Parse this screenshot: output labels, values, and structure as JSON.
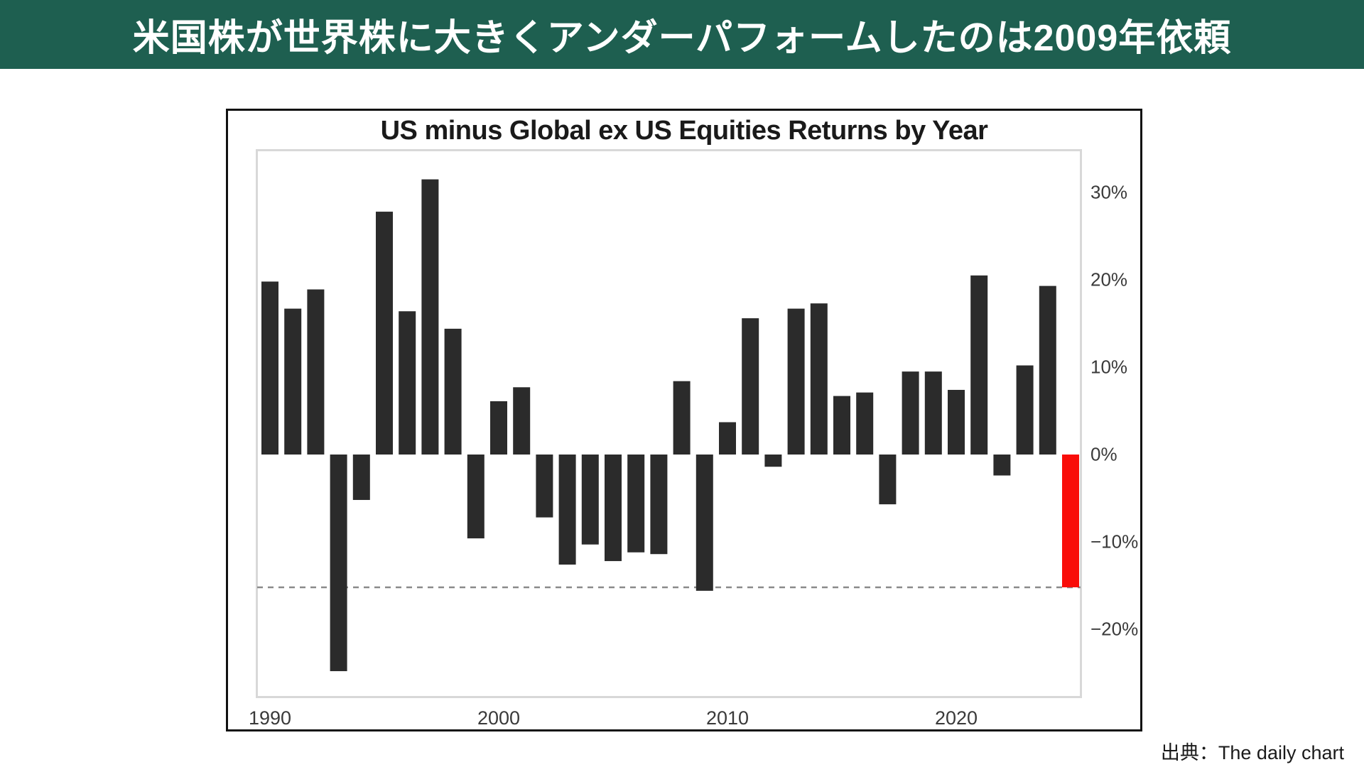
{
  "banner": {
    "title": "米国株が世界株に大きくアンダーパフォームしたのは2009年依頼"
  },
  "source_note": "出典：The daily chart",
  "colors": {
    "banner_bg": "#1e5f50",
    "banner_text": "#ffffff",
    "bar": "#2b2b2b",
    "highlight": "#f90d09",
    "dashed_line": "#8a8a8a",
    "plot_border": "#d8d8d8",
    "outer_border": "#111111",
    "tick_text": "#3a3a3a"
  },
  "chart_data": {
    "type": "bar",
    "title": "US minus Global ex US Equities Returns by Year",
    "xlabel": "",
    "ylabel": "",
    "categories": [
      1990,
      1991,
      1992,
      1993,
      1994,
      1995,
      1996,
      1997,
      1998,
      1999,
      2000,
      2001,
      2002,
      2003,
      2004,
      2005,
      2006,
      2007,
      2008,
      2009,
      2010,
      2011,
      2012,
      2013,
      2014,
      2015,
      2016,
      2017,
      2018,
      2019,
      2020,
      2021,
      2022,
      2023,
      2024,
      2025
    ],
    "values": [
      19.8,
      16.7,
      18.9,
      -24.8,
      -5.2,
      27.8,
      16.4,
      31.5,
      14.4,
      -9.6,
      6.1,
      7.7,
      -7.2,
      -12.6,
      -10.3,
      -12.2,
      -11.2,
      -11.4,
      8.4,
      -15.6,
      3.7,
      15.6,
      -1.4,
      16.7,
      17.3,
      6.7,
      7.1,
      -5.7,
      9.5,
      9.5,
      7.4,
      20.5,
      -2.4,
      10.2,
      19.3,
      -15.2
    ],
    "highlight_year": 2025,
    "dashed_line_value": -15.2,
    "ylim": [
      -28,
      35
    ],
    "grid": false,
    "legend": null,
    "yticks": [
      {
        "label": "30%",
        "value": 30
      },
      {
        "label": "20%",
        "value": 20
      },
      {
        "label": "10%",
        "value": 10
      },
      {
        "label": "0%",
        "value": 0
      },
      {
        "label": "−10%",
        "value": -10
      },
      {
        "label": "−20%",
        "value": -20
      }
    ],
    "xticks": [
      1990,
      2000,
      2010,
      2020
    ]
  }
}
